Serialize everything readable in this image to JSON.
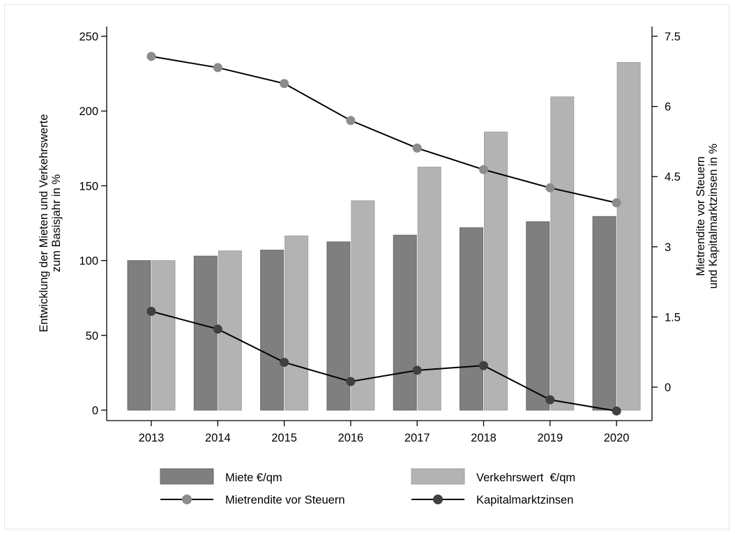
{
  "chart_data": {
    "type": "bar",
    "categories": [
      "2013",
      "2014",
      "2015",
      "2016",
      "2017",
      "2018",
      "2019",
      "2020"
    ],
    "bar_series": [
      {
        "name": "Miete €/qm",
        "color": "#7f7f7f",
        "values": [
          100,
          103,
          107,
          112.5,
          117,
          122,
          126,
          129.5
        ]
      },
      {
        "name": "Verkehrswert  €/qm",
        "color": "#b3b3b3",
        "values": [
          100,
          106.5,
          116.5,
          140,
          162.5,
          186,
          209.5,
          232.5
        ]
      }
    ],
    "line_series": [
      {
        "name": "Mietrendite vor Steuern",
        "marker_color": "#8c8c8c",
        "values": [
          7.07,
          6.83,
          6.49,
          5.7,
          5.11,
          4.65,
          4.26,
          3.94
        ]
      },
      {
        "name": "Kapitalmarktzinsen",
        "marker_color": "#404040",
        "values": [
          1.62,
          1.24,
          0.53,
          0.12,
          0.36,
          0.46,
          -0.27,
          -0.51
        ]
      }
    ],
    "y_left": {
      "label_line1": "Entwicklung der Mieten und Verkehrswerte",
      "label_line2": "zum Basisjahr in %",
      "min": -5,
      "max": 257,
      "ticks": [
        0,
        50,
        100,
        150,
        200,
        250
      ]
    },
    "y_right": {
      "label_line1": "Mietrendite vor Steuern",
      "label_line2": "und Kapitalmarktzinsen in %",
      "min": -0.7,
      "max": 7.65,
      "ticks": [
        "0",
        "1.5",
        "3",
        "4.5",
        "6",
        "7.5"
      ]
    },
    "grid": false,
    "legend_position": "bottom"
  }
}
